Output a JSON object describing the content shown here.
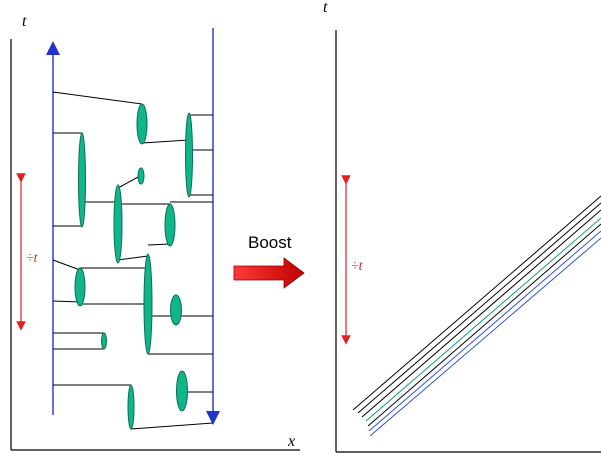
{
  "left_panel": {
    "t_axis_label": "t",
    "x_axis_label": "x",
    "delta_t_label": "÷t"
  },
  "right_panel": {
    "t_axis_label": "t",
    "delta_t_label": "÷t"
  },
  "boost": {
    "label": "Boost"
  },
  "colors": {
    "axis": "#000000",
    "arrow_blue": "#2233cc",
    "arrow_red": "#dd2222",
    "ellipse_fill": "#11b58a",
    "ellipse_stroke": "#0a6e55",
    "worldline_green": "#15a07a",
    "worldline_blue": "#3355dd"
  }
}
